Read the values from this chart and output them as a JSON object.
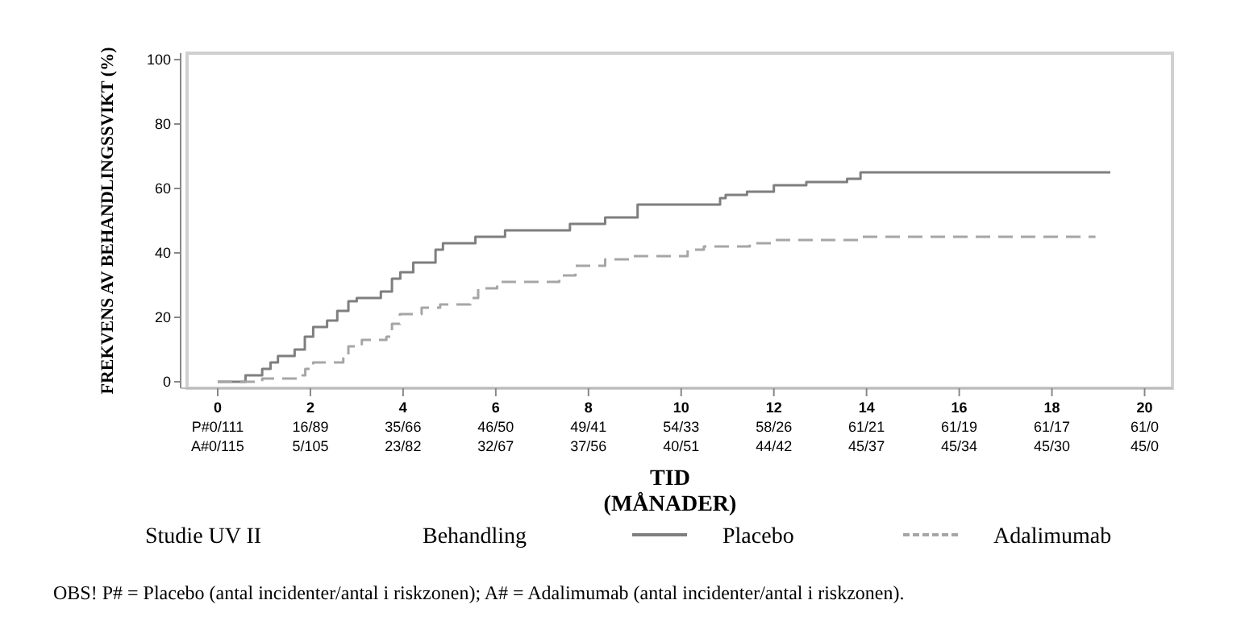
{
  "chart_data": {
    "type": "step",
    "ylabel": "FREKVENS AV BEHANDLINGSSVIKT (%)",
    "xlabel": "TID\n(MÅNADER)",
    "legend_title": "Behandling",
    "legend": "bottom",
    "xlim": [
      -0.8,
      20.6
    ],
    "ylim": [
      -2,
      102
    ],
    "yticks": [
      0,
      20,
      40,
      60,
      80,
      100
    ],
    "xticks": [
      0,
      2,
      4,
      6,
      8,
      10,
      12,
      14,
      16,
      18,
      20
    ],
    "series": [
      {
        "name": "Placebo",
        "color": "#7f7f7f",
        "line_style": "solid",
        "x": [
          0,
          0.6,
          0.96,
          1.14,
          1.3,
          1.66,
          1.88,
          2.06,
          2.36,
          2.58,
          2.82,
          3.0,
          3.52,
          3.76,
          3.94,
          4.22,
          4.7,
          4.86,
          5.56,
          6.2,
          7.6,
          8.36,
          9.06,
          10.84,
          10.96,
          11.42,
          12.0,
          12.7,
          13.58,
          13.87,
          19.26
        ],
        "values": [
          0,
          2,
          4,
          6,
          8,
          10,
          14,
          17,
          19,
          22,
          25,
          26,
          28,
          32,
          34,
          37,
          41,
          43,
          45,
          47,
          49,
          51,
          55,
          57,
          58,
          59,
          61,
          62,
          63,
          65,
          65
        ]
      },
      {
        "name": "Adalimumab",
        "color": "#a6a6a6",
        "line_style": "dashed",
        "x": [
          0,
          0.96,
          1.83,
          1.89,
          2.06,
          2.71,
          2.82,
          3.11,
          3.64,
          3.76,
          3.93,
          4.4,
          4.8,
          5.45,
          5.62,
          6.03,
          7.37,
          7.72,
          8.36,
          8.89,
          10.14,
          10.49,
          11.48,
          11.95,
          13.87,
          18.94
        ],
        "values": [
          0,
          1,
          2,
          4,
          6,
          8,
          11,
          13,
          14,
          18,
          21,
          23,
          24,
          26,
          29,
          31,
          33,
          36,
          38,
          39,
          41,
          42,
          43,
          44,
          45,
          45
        ]
      }
    ],
    "annotations": [
      "Studie UV II",
      "P#0/111",
      "16/89",
      "35/66",
      "46/50",
      "49/41",
      "54/33",
      "58/26",
      "61/21",
      "61/19",
      "61/17",
      "61/0",
      "A#0/115",
      "5/105",
      "23/82",
      "32/67",
      "37/56",
      "40/51",
      "44/42",
      "45/37",
      "45/34",
      "45/30",
      "45/0",
      "OBS! P# = Placebo (antal incidenter/antal i riskzonen); A# = Adalimumab (antal incidenter/antal i riskzonen)."
    ]
  }
}
